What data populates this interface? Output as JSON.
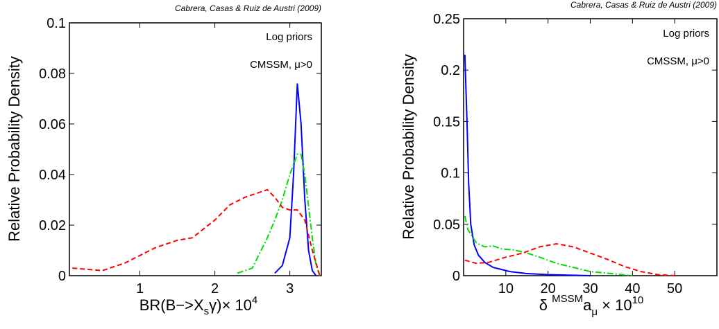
{
  "chart_data": [
    {
      "type": "line",
      "citation": "Cabrera, Casas & Ruiz de Austri (2009)",
      "annotations": [
        "Log priors",
        "CMSSM, μ>0"
      ],
      "ylabel": "Relative Probability Density",
      "xlabel_parts": [
        "BR(B−>X",
        "s",
        "γ)× 10",
        "4"
      ],
      "xlim": [
        0.06,
        3.42
      ],
      "ylim": [
        0,
        0.1
      ],
      "xticks": [
        1,
        2,
        3
      ],
      "yticks": [
        0,
        0.02,
        0.04,
        0.06,
        0.08,
        0.1
      ],
      "series": [
        {
          "color": "#0000ff",
          "style": "solid",
          "x": [
            2.8,
            2.9,
            3.0,
            3.05,
            3.1,
            3.15,
            3.2,
            3.25,
            3.3,
            3.35
          ],
          "values": [
            0.001,
            0.004,
            0.015,
            0.04,
            0.076,
            0.06,
            0.03,
            0.01,
            0.002,
            0
          ]
        },
        {
          "color": "#00dd00",
          "style": "dashdot",
          "x": [
            2.3,
            2.5,
            2.7,
            2.8,
            2.9,
            3.0,
            3.1,
            3.15,
            3.2,
            3.3,
            3.35,
            3.4
          ],
          "values": [
            0.001,
            0.003,
            0.015,
            0.022,
            0.03,
            0.04,
            0.048,
            0.048,
            0.04,
            0.015,
            0.004,
            0
          ]
        },
        {
          "color": "#ff0000",
          "style": "dashed",
          "x": [
            0.1,
            0.5,
            0.8,
            1.0,
            1.2,
            1.5,
            1.7,
            2.0,
            2.2,
            2.4,
            2.6,
            2.7,
            2.8,
            2.9,
            3.0,
            3.1,
            3.2,
            3.3,
            3.4
          ],
          "values": [
            0.003,
            0.002,
            0.005,
            0.008,
            0.011,
            0.014,
            0.015,
            0.022,
            0.028,
            0.031,
            0.033,
            0.034,
            0.031,
            0.027,
            0.026,
            0.026,
            0.022,
            0.01,
            0
          ]
        }
      ]
    },
    {
      "type": "line",
      "citation": "Cabrera, Casas & Ruiz de Austri (2009)",
      "annotations": [
        "Log priors",
        "CMSSM, μ>0"
      ],
      "ylabel": "Relative Probability Density",
      "xlabel_parts": [
        "δ ",
        "MSSM",
        "a",
        "μ",
        " × 10",
        "10"
      ],
      "xlim": [
        0,
        60
      ],
      "ylim": [
        0,
        0.25
      ],
      "xticks": [
        10,
        20,
        30,
        40,
        50
      ],
      "yticks": [
        0,
        0.05,
        0.1,
        0.15,
        0.2,
        0.25
      ],
      "series": [
        {
          "color": "#0000ff",
          "style": "solid",
          "x": [
            0.3,
            0.8,
            1.2,
            1.7,
            2.5,
            3.5,
            5,
            7,
            9,
            11,
            15,
            20,
            30
          ],
          "values": [
            0.215,
            0.15,
            0.09,
            0.05,
            0.03,
            0.02,
            0.013,
            0.008,
            0.006,
            0.004,
            0.002,
            0.001,
            0
          ]
        },
        {
          "color": "#00dd00",
          "style": "dashdot",
          "x": [
            0.3,
            1,
            3,
            5,
            7,
            9,
            12,
            15,
            18,
            22,
            26,
            30,
            35,
            40
          ],
          "values": [
            0.058,
            0.045,
            0.032,
            0.028,
            0.029,
            0.026,
            0.025,
            0.022,
            0.018,
            0.012,
            0.008,
            0.004,
            0.002,
            0
          ]
        },
        {
          "color": "#ff0000",
          "style": "dashed",
          "x": [
            0.3,
            3,
            6,
            10,
            14,
            18,
            22,
            26,
            30,
            34,
            38,
            42,
            46,
            50
          ],
          "values": [
            0.015,
            0.012,
            0.013,
            0.018,
            0.022,
            0.028,
            0.031,
            0.028,
            0.022,
            0.016,
            0.009,
            0.004,
            0.001,
            0
          ]
        }
      ]
    }
  ]
}
